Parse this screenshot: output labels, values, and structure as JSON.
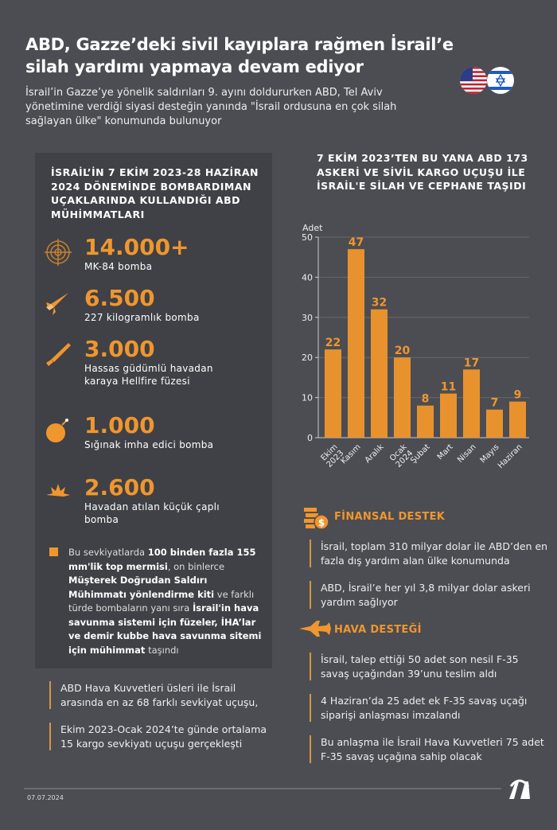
{
  "header": {
    "title": "ABD, Gazze’deki sivil kayıplara rağmen İsrail’e silah yardımı yapmaya devam ediyor",
    "subtitle": "İsrail’in Gazze’ye yönelik saldırıları 9. ayını doldururken ABD, Tel Aviv yönetimine verdiği siyasi desteğin yanında \"İsrail ordusuna en çok silah sağlayan ülke\" konumunda bulunuyor",
    "flags": [
      "usa-flag",
      "israel-flag"
    ]
  },
  "munitions": {
    "title": "İSRAİL’İN 7 EKİM 2023-28 HAZİRAN 2024 DÖNEMİNDE BOMBARDIMAN UÇAKLARINDA KULLANDIĞI ABD MÜHİMMATLARI",
    "items": [
      {
        "icon": "target-icon",
        "value": "14.000+",
        "label": "MK-84 bomba"
      },
      {
        "icon": "rocket-icon",
        "value": "6.500",
        "label": "227 kilogramlık bomba"
      },
      {
        "icon": "missile-icon",
        "value": "3.000",
        "label": "Hassas güdümlü havadan karaya Hellfire füzesi"
      },
      {
        "icon": "bomb-icon",
        "value": "1.000",
        "label": "Sığınak imha edici bomba"
      },
      {
        "icon": "explosion-icon",
        "value": "2.600",
        "label": "Havadan atılan küçük çaplı bomba"
      }
    ],
    "note": [
      {
        "t": "Bu sevkiyatlarda ",
        "b": false
      },
      {
        "t": "100 binden fazla 155 mm'lik top mermisi",
        "b": true
      },
      {
        "t": ", on binlerce ",
        "b": false
      },
      {
        "t": "Müşterek Doğrudan Saldırı Mühimmatı yönlendirme kiti",
        "b": true
      },
      {
        "t": " ve farklı türde bombaların yanı sıra ",
        "b": false
      },
      {
        "t": "İsrail'in hava savunma sistemi için füzeler, İHA’lar ve demir kubbe hava savunma sitemi için mühimmat",
        "b": true
      },
      {
        "t": " taşındı",
        "b": false
      }
    ]
  },
  "flights": [
    "ABD Hava Kuvvetleri üsleri ile İsrail arasında en az 68 farklı sevkiyat uçuşu,",
    "Ekim 2023-Ocak 2024’te günde ortalama 15 kargo sevkiyatı uçuşu gerçekleşti"
  ],
  "chart_data": {
    "type": "bar",
    "title": "7 EKİM 2023’TEN BU YANA ABD 173 ASKERİ VE SİVİL KARGO UÇUŞU İLE İSRAİL'E SİLAH VE CEPHANE TAŞIDI",
    "ylabel": "Adet",
    "ylim": [
      0,
      50
    ],
    "yticks": [
      0,
      10,
      20,
      30,
      40,
      50
    ],
    "grid": true,
    "categories": [
      "Ekim 2023",
      "Kasım",
      "Aralık",
      "Ocak 2024",
      "Şubat",
      "Mart",
      "Nisan",
      "Mayıs",
      "Haziran"
    ],
    "values": [
      22,
      47,
      32,
      20,
      8,
      11,
      17,
      7,
      9
    ],
    "bar_color": "#e8922e"
  },
  "financial": {
    "title": "FİNANSAL DESTEK",
    "items": [
      "İsrail, toplam 310 milyar dolar ile ABD’den en fazla dış yardım alan ülke konumunda",
      "ABD, İsrail’e her yıl 3,8 milyar dolar askeri yardım sağlıyor"
    ]
  },
  "air": {
    "title": "HAVA DESTEĞİ",
    "items": [
      "İsrail, talep ettiği 50 adet son nesil F-35 savaş uçağından 39’unu teslim aldı",
      "4 Haziran’da 25 adet ek F-35 savaş uçağı siparişi anlaşması imzalandı",
      "Bu anlaşma ile İsrail Hava Kuvvetleri 75 adet F-35 savaş uçağına sahip olacak"
    ]
  },
  "footer": {
    "date": "07.07.2024",
    "logo": "AA"
  },
  "colors": {
    "accent": "#f0962e",
    "background": "#4b4d53",
    "panel": "#3f4146"
  }
}
